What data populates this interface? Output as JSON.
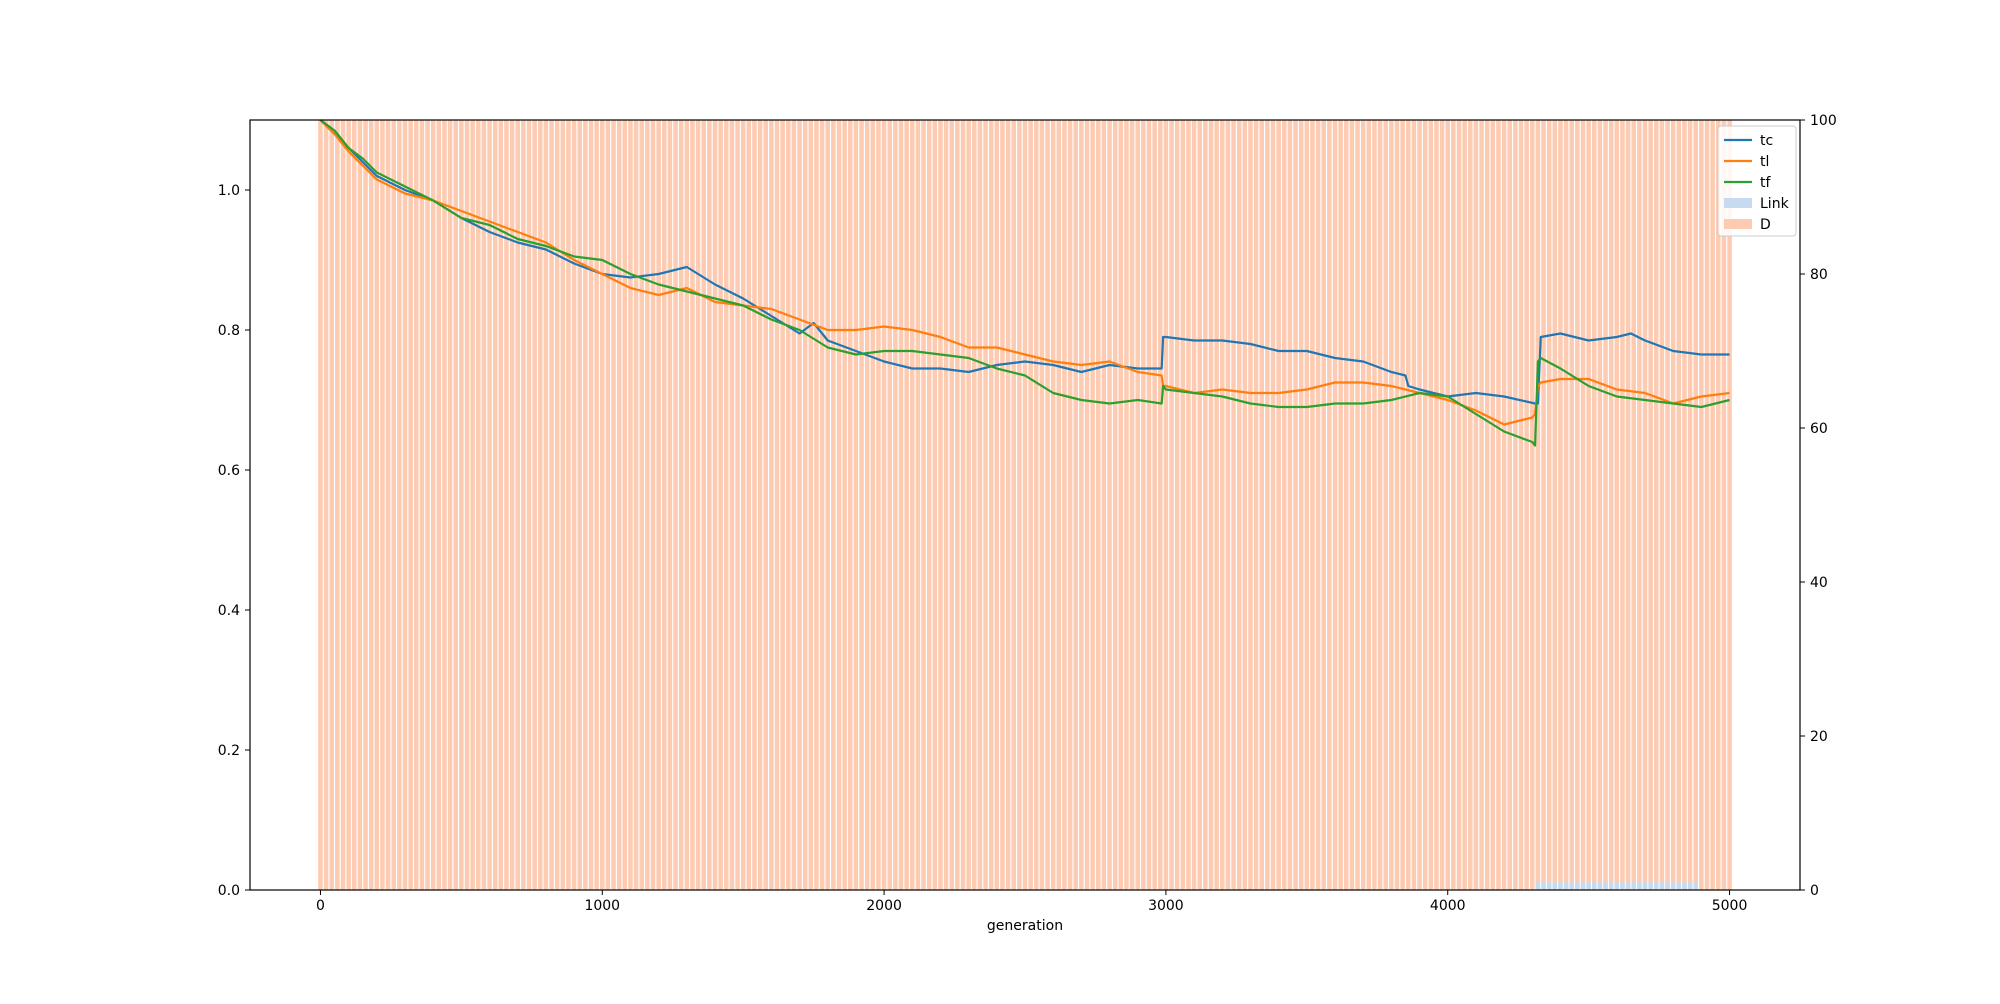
{
  "chart_data": {
    "type": "line",
    "xlabel": "generation",
    "ylabel": "",
    "y2label": "",
    "xlim": [
      -250,
      5250
    ],
    "ylim": [
      0,
      1.1
    ],
    "y2lim": [
      0,
      100
    ],
    "xticks": [
      "0",
      "1000",
      "2000",
      "3000",
      "4000",
      "5000"
    ],
    "yticks": [
      "0.0",
      "0.2",
      "0.4",
      "0.6",
      "0.8",
      "1.0"
    ],
    "y2ticks": [
      "0",
      "20",
      "40",
      "60",
      "80",
      "100"
    ],
    "legend_position": "top-right",
    "legend": [
      "tc",
      "tl",
      "tf",
      "Link",
      "D"
    ],
    "colors": {
      "tc": "#1f77b4",
      "tl": "#ff7f0e",
      "tf": "#2ca02c",
      "Link": "#c6dbef",
      "D": "#fdcab2"
    },
    "bars": {
      "D": {
        "x_start": 0,
        "x_end": 5000,
        "step": 20,
        "value": 100
      },
      "Link": {
        "x_start": 4320,
        "x_end": 4880,
        "step": 20,
        "value": 1
      }
    },
    "series": [
      {
        "name": "tc",
        "x": [
          0,
          50,
          100,
          150,
          200,
          300,
          400,
          500,
          600,
          700,
          800,
          900,
          1000,
          1100,
          1200,
          1300,
          1400,
          1500,
          1600,
          1700,
          1750,
          1800,
          1900,
          2000,
          2100,
          2200,
          2300,
          2400,
          2500,
          2600,
          2700,
          2800,
          2900,
          2985,
          2990,
          3000,
          3100,
          3200,
          3300,
          3400,
          3500,
          3600,
          3700,
          3800,
          3850,
          3860,
          3900,
          4000,
          4100,
          4200,
          4310,
          4320,
          4330,
          4400,
          4500,
          4600,
          4650,
          4700,
          4800,
          4900,
          5000
        ],
        "y": [
          1.1,
          1.08,
          1.06,
          1.04,
          1.02,
          1.0,
          0.985,
          0.96,
          0.94,
          0.925,
          0.915,
          0.895,
          0.88,
          0.875,
          0.88,
          0.89,
          0.865,
          0.845,
          0.82,
          0.795,
          0.81,
          0.785,
          0.77,
          0.755,
          0.745,
          0.745,
          0.74,
          0.75,
          0.755,
          0.75,
          0.74,
          0.75,
          0.745,
          0.745,
          0.79,
          0.79,
          0.785,
          0.785,
          0.78,
          0.77,
          0.77,
          0.76,
          0.755,
          0.74,
          0.735,
          0.72,
          0.715,
          0.705,
          0.71,
          0.705,
          0.695,
          0.695,
          0.79,
          0.795,
          0.785,
          0.79,
          0.795,
          0.785,
          0.77,
          0.765,
          0.765
        ]
      },
      {
        "name": "tl",
        "x": [
          0,
          50,
          100,
          150,
          200,
          300,
          400,
          500,
          600,
          700,
          800,
          900,
          1000,
          1100,
          1200,
          1300,
          1400,
          1500,
          1600,
          1700,
          1800,
          1900,
          2000,
          2100,
          2200,
          2300,
          2400,
          2500,
          2600,
          2700,
          2800,
          2900,
          2985,
          2990,
          3000,
          3100,
          3200,
          3300,
          3400,
          3500,
          3600,
          3700,
          3800,
          3900,
          4000,
          4100,
          4200,
          4300,
          4310,
          4320,
          4330,
          4400,
          4500,
          4600,
          4700,
          4800,
          4900,
          5000
        ],
        "y": [
          1.1,
          1.08,
          1.055,
          1.035,
          1.015,
          0.995,
          0.985,
          0.97,
          0.955,
          0.94,
          0.925,
          0.9,
          0.88,
          0.86,
          0.85,
          0.86,
          0.84,
          0.835,
          0.83,
          0.815,
          0.8,
          0.8,
          0.805,
          0.8,
          0.79,
          0.775,
          0.775,
          0.765,
          0.755,
          0.75,
          0.755,
          0.74,
          0.735,
          0.72,
          0.72,
          0.71,
          0.715,
          0.71,
          0.71,
          0.715,
          0.725,
          0.725,
          0.72,
          0.71,
          0.7,
          0.685,
          0.665,
          0.675,
          0.68,
          0.72,
          0.725,
          0.73,
          0.73,
          0.715,
          0.71,
          0.695,
          0.705,
          0.71
        ]
      },
      {
        "name": "tf",
        "x": [
          0,
          50,
          100,
          150,
          200,
          300,
          400,
          500,
          600,
          700,
          800,
          900,
          1000,
          1100,
          1200,
          1300,
          1400,
          1500,
          1600,
          1700,
          1800,
          1900,
          2000,
          2100,
          2200,
          2300,
          2400,
          2500,
          2600,
          2700,
          2800,
          2900,
          2985,
          2990,
          3000,
          3100,
          3200,
          3300,
          3400,
          3500,
          3600,
          3700,
          3800,
          3900,
          4000,
          4100,
          4200,
          4300,
          4310,
          4320,
          4330,
          4400,
          4500,
          4600,
          4700,
          4800,
          4900,
          5000
        ],
        "y": [
          1.1,
          1.085,
          1.06,
          1.045,
          1.025,
          1.005,
          0.985,
          0.96,
          0.95,
          0.93,
          0.92,
          0.905,
          0.9,
          0.88,
          0.865,
          0.855,
          0.845,
          0.835,
          0.815,
          0.8,
          0.775,
          0.765,
          0.77,
          0.77,
          0.765,
          0.76,
          0.745,
          0.735,
          0.71,
          0.7,
          0.695,
          0.7,
          0.695,
          0.72,
          0.715,
          0.71,
          0.705,
          0.695,
          0.69,
          0.69,
          0.695,
          0.695,
          0.7,
          0.71,
          0.705,
          0.68,
          0.655,
          0.64,
          0.635,
          0.755,
          0.76,
          0.745,
          0.72,
          0.705,
          0.7,
          0.695,
          0.69,
          0.7
        ]
      }
    ]
  }
}
